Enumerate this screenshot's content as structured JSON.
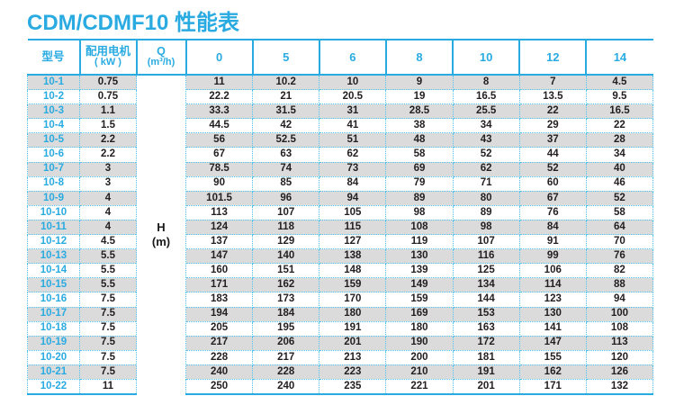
{
  "page": {
    "title": "CDM/CDMF10 性能表",
    "accent_color": "#29ABE2",
    "stripe_color": "#DBDBDB",
    "dotted_border_color": "#53C3EF"
  },
  "table": {
    "header": {
      "model": "型号",
      "motor_line1": "配用电机",
      "motor_line2": "( kW )",
      "q_line1": "Q",
      "q_line2": "(m³/h)",
      "flows": [
        "0",
        "5",
        "6",
        "8",
        "10",
        "12",
        "14"
      ]
    },
    "h_unit_line1": "H",
    "h_unit_line2": "(m)",
    "rows": [
      {
        "model": "10-1",
        "kw": "0.75",
        "values": [
          "11",
          "10.2",
          "10",
          "9",
          "8",
          "7",
          "4.5"
        ]
      },
      {
        "model": "10-2",
        "kw": "0.75",
        "values": [
          "22.2",
          "21",
          "20.5",
          "19",
          "16.5",
          "13.5",
          "9.5"
        ]
      },
      {
        "model": "10-3",
        "kw": "1.1",
        "values": [
          "33.3",
          "31.5",
          "31",
          "28.5",
          "25.5",
          "22",
          "16.5"
        ]
      },
      {
        "model": "10-4",
        "kw": "1.5",
        "values": [
          "44.5",
          "42",
          "41",
          "38",
          "34",
          "29",
          "22"
        ]
      },
      {
        "model": "10-5",
        "kw": "2.2",
        "values": [
          "56",
          "52.5",
          "51",
          "48",
          "43",
          "37",
          "28"
        ]
      },
      {
        "model": "10-6",
        "kw": "2.2",
        "values": [
          "67",
          "63",
          "62",
          "58",
          "52",
          "44",
          "34"
        ]
      },
      {
        "model": "10-7",
        "kw": "3",
        "values": [
          "78.5",
          "74",
          "73",
          "69",
          "62",
          "52",
          "40"
        ]
      },
      {
        "model": "10-8",
        "kw": "3",
        "values": [
          "90",
          "85",
          "84",
          "79",
          "71",
          "60",
          "46"
        ]
      },
      {
        "model": "10-9",
        "kw": "4",
        "values": [
          "101.5",
          "96",
          "94",
          "89",
          "80",
          "67",
          "52"
        ]
      },
      {
        "model": "10-10",
        "kw": "4",
        "values": [
          "113",
          "107",
          "105",
          "98",
          "89",
          "76",
          "58"
        ]
      },
      {
        "model": "10-11",
        "kw": "4",
        "values": [
          "124",
          "118",
          "115",
          "108",
          "98",
          "84",
          "64"
        ]
      },
      {
        "model": "10-12",
        "kw": "4.5",
        "values": [
          "137",
          "129",
          "127",
          "119",
          "107",
          "91",
          "70"
        ]
      },
      {
        "model": "10-13",
        "kw": "5.5",
        "values": [
          "147",
          "140",
          "138",
          "130",
          "116",
          "99",
          "76"
        ]
      },
      {
        "model": "10-14",
        "kw": "5.5",
        "values": [
          "160",
          "151",
          "148",
          "139",
          "125",
          "106",
          "82"
        ]
      },
      {
        "model": "10-15",
        "kw": "5.5",
        "values": [
          "171",
          "162",
          "159",
          "149",
          "134",
          "114",
          "88"
        ]
      },
      {
        "model": "10-16",
        "kw": "7.5",
        "values": [
          "183",
          "173",
          "170",
          "159",
          "144",
          "123",
          "94"
        ]
      },
      {
        "model": "10-17",
        "kw": "7.5",
        "values": [
          "194",
          "184",
          "180",
          "169",
          "153",
          "130",
          "100"
        ]
      },
      {
        "model": "10-18",
        "kw": "7.5",
        "values": [
          "205",
          "195",
          "191",
          "180",
          "163",
          "141",
          "108"
        ]
      },
      {
        "model": "10-19",
        "kw": "7.5",
        "values": [
          "217",
          "206",
          "201",
          "190",
          "172",
          "147",
          "113"
        ]
      },
      {
        "model": "10-20",
        "kw": "7.5",
        "values": [
          "228",
          "217",
          "213",
          "200",
          "181",
          "155",
          "120"
        ]
      },
      {
        "model": "10-21",
        "kw": "7.5",
        "values": [
          "240",
          "228",
          "223",
          "210",
          "191",
          "162",
          "126"
        ]
      },
      {
        "model": "10-22",
        "kw": "11",
        "values": [
          "250",
          "240",
          "235",
          "221",
          "201",
          "171",
          "132"
        ]
      }
    ]
  }
}
